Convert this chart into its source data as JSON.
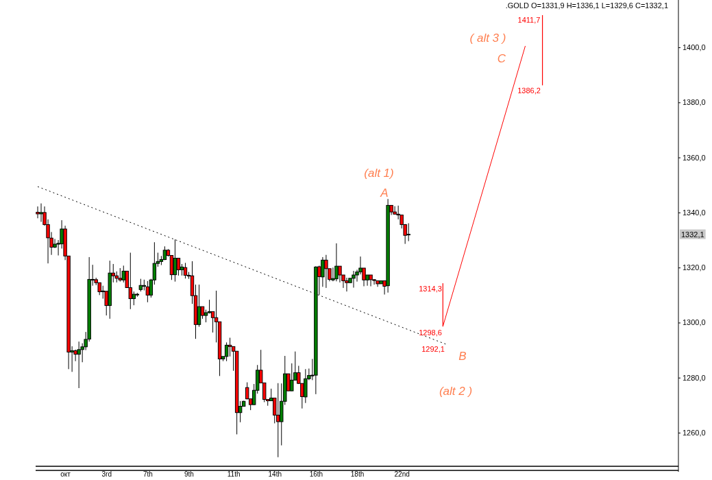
{
  "chart_data": {
    "type": "candlestick",
    "title": ".GOLD O=1331,9 H=1336,1 L=1329,6 C=1332,1",
    "categories": [
      null,
      null,
      null,
      null,
      null,
      null,
      null,
      null,
      "окт",
      null,
      null,
      null,
      null,
      null,
      null,
      null,
      null,
      null,
      null,
      null,
      "3rd",
      null,
      null,
      null,
      null,
      null,
      null,
      null,
      null,
      null,
      null,
      null,
      "7th",
      null,
      null,
      null,
      null,
      null,
      null,
      null,
      null,
      null,
      null,
      null,
      "9th",
      null,
      null,
      null,
      null,
      null,
      null,
      null,
      null,
      null,
      null,
      null,
      null,
      "11th",
      null,
      null,
      null,
      null,
      null,
      null,
      null,
      null,
      null,
      null,
      null,
      "14th",
      null,
      null,
      null,
      null,
      null,
      null,
      null,
      null,
      null,
      null,
      null,
      "16th",
      null,
      null,
      null,
      null,
      null,
      null,
      null,
      null,
      null,
      null,
      null,
      "18th",
      null,
      null,
      null,
      null,
      null,
      null,
      null,
      null,
      null,
      null,
      null,
      null,
      "22nd",
      null,
      null,
      null,
      null,
      null,
      null,
      null,
      null,
      null,
      null,
      null,
      null,
      null,
      null,
      null,
      null,
      null,
      null,
      null,
      null,
      null,
      null,
      null,
      null,
      null,
      null,
      null,
      null,
      null,
      null,
      null,
      null,
      null,
      null,
      null,
      null,
      null,
      null,
      null,
      null,
      null,
      null,
      null,
      null,
      null,
      null,
      null,
      null,
      null,
      null,
      null,
      null,
      null,
      null,
      null,
      null,
      null,
      null,
      null,
      null,
      null,
      null,
      null,
      null,
      null,
      null,
      null,
      null,
      null,
      null,
      null,
      null,
      null,
      null,
      null,
      null,
      null,
      null,
      null,
      null
    ],
    "ohlc": [
      [
        1340.1,
        1342.2,
        1337.9,
        1339.5
      ],
      [
        1339.5,
        1343.3,
        1336.6,
        1340.0
      ],
      [
        1340.0,
        1342.2,
        1335.2,
        1335.6
      ],
      [
        1335.6,
        1337.5,
        1321.5,
        1330.8
      ],
      [
        1330.7,
        1332.9,
        1324.6,
        1327.4
      ],
      [
        1327.4,
        1330.4,
        1327.1,
        1328.5
      ],
      [
        1328.5,
        1330.0,
        1324.4,
        1328.8
      ],
      [
        1328.6,
        1337.2,
        1326.9,
        1334.0
      ],
      [
        1334.0,
        1335.2,
        1322.7,
        1324.2
      ],
      [
        1324.2,
        1324.2,
        1283.1,
        1289.3
      ],
      [
        1289.3,
        1291.4,
        1282.1,
        1289.8
      ],
      [
        1289.8,
        1290.2,
        1286.0,
        1288.5
      ],
      [
        1288.5,
        1293.1,
        1276.2,
        1290.2
      ],
      [
        1290.2,
        1292.5,
        1285.6,
        1291.2
      ],
      [
        1291.2,
        1296.6,
        1290.0,
        1293.9
      ],
      [
        1294.0,
        1323.8,
        1293.1,
        1315.7
      ],
      [
        1315.7,
        1321.0,
        1313.4,
        1315.5
      ],
      [
        1315.6,
        1316.3,
        1313.6,
        1314.5
      ],
      [
        1314.5,
        1314.5,
        1310.0,
        1311.2
      ],
      [
        1311.2,
        1313.4,
        1308.7,
        1311.5
      ],
      [
        1311.4,
        1311.4,
        1302.6,
        1306.2
      ],
      [
        1306.2,
        1322.5,
        1301.4,
        1318.0
      ],
      [
        1318.0,
        1321.3,
        1314.6,
        1317.0
      ],
      [
        1317.0,
        1318.6,
        1314.6,
        1316.1
      ],
      [
        1316.1,
        1319.8,
        1314.9,
        1315.5
      ],
      [
        1315.5,
        1320.7,
        1314.6,
        1318.7
      ],
      [
        1318.7,
        1318.7,
        1312.6,
        1312.7
      ],
      [
        1312.7,
        1325.4,
        1304.9,
        1308.7
      ],
      [
        1308.7,
        1311.3,
        1306.3,
        1310.3
      ],
      [
        1310.3,
        1310.8,
        1309.4,
        1310.2
      ],
      [
        1312.0,
        1315.9,
        1311.3,
        1313.5
      ],
      [
        1313.2,
        1315.6,
        1311.7,
        1313.5
      ],
      [
        1313.0,
        1315.1,
        1307.4,
        1310.0
      ],
      [
        1310.0,
        1315.9,
        1309.1,
        1315.5
      ],
      [
        1315.5,
        1329.2,
        1313.8,
        1321.5
      ],
      [
        1321.5,
        1325.4,
        1320.3,
        1322.2
      ],
      [
        1322.2,
        1324.2,
        1320.9,
        1322.9
      ],
      [
        1322.9,
        1327.7,
        1322.7,
        1326.3
      ],
      [
        1326.3,
        1326.7,
        1324.0,
        1324.4
      ],
      [
        1324.4,
        1324.4,
        1315.5,
        1317.4
      ],
      [
        1317.4,
        1330.2,
        1314.9,
        1323.4
      ],
      [
        1323.4,
        1323.4,
        1317.1,
        1319.2
      ],
      [
        1319.2,
        1321.3,
        1317.1,
        1320.2
      ],
      [
        1320.0,
        1321.7,
        1316.0,
        1317.2
      ],
      [
        1317.2,
        1318.4,
        1315.9,
        1316.9
      ],
      [
        1317.0,
        1322.3,
        1306.8,
        1309.8
      ],
      [
        1309.8,
        1313.8,
        1294.1,
        1299.3
      ],
      [
        1299.3,
        1313.8,
        1298.5,
        1305.8
      ],
      [
        1305.8,
        1305.8,
        1301.4,
        1302.6
      ],
      [
        1302.6,
        1304.7,
        1300.1,
        1303.6
      ],
      [
        1303.6,
        1308.3,
        1303.3,
        1304.0
      ],
      [
        1304.0,
        1304.0,
        1296.4,
        1301.8
      ],
      [
        1301.8,
        1311.6,
        1292.8,
        1300.3
      ],
      [
        1300.3,
        1300.3,
        1280.6,
        1286.8
      ],
      [
        1286.8,
        1287.7,
        1286.0,
        1287.7
      ],
      [
        1287.7,
        1292.8,
        1286.0,
        1291.8
      ],
      [
        1291.8,
        1294.5,
        1287.7,
        1291.3
      ],
      [
        1291.3,
        1291.3,
        1282.5,
        1289.6
      ],
      [
        1289.6,
        1289.6,
        1259.4,
        1267.3
      ],
      [
        1267.3,
        1271.5,
        1263.8,
        1269.6
      ],
      [
        1269.6,
        1271.6,
        1269.6,
        1271.4
      ],
      [
        1276.4,
        1278.3,
        1272.1,
        1272.3
      ],
      [
        1272.3,
        1272.3,
        1268.2,
        1270.2
      ],
      [
        1270.2,
        1277.7,
        1270.0,
        1275.4
      ],
      [
        1275.4,
        1284.6,
        1274.2,
        1282.7
      ],
      [
        1282.7,
        1290.1,
        1278.1,
        1278.1
      ],
      [
        1278.1,
        1278.1,
        1271.1,
        1272.1
      ],
      [
        1272.1,
        1272.1,
        1269.8,
        1271.6
      ],
      [
        1271.6,
        1276.0,
        1271.6,
        1272.6
      ],
      [
        1272.6,
        1272.6,
        1263.4,
        1266.4
      ],
      [
        1266.4,
        1278.0,
        1251.1,
        1264.0
      ],
      [
        1264.0,
        1277.9,
        1255.4,
        1271.4
      ],
      [
        1271.4,
        1287.9,
        1270.1,
        1281.4
      ],
      [
        1281.4,
        1281.4,
        1275.1,
        1275.2
      ],
      [
        1275.2,
        1285.2,
        1275.1,
        1279.1
      ],
      [
        1279.1,
        1289.5,
        1279.1,
        1281.8
      ],
      [
        1281.8,
        1284.3,
        1277.7,
        1277.9
      ],
      [
        1277.9,
        1277.9,
        1268.8,
        1273.1
      ],
      [
        1273.0,
        1283.1,
        1270.8,
        1279.6
      ],
      [
        1279.6,
        1283.3,
        1279.1,
        1280.8
      ],
      [
        1280.8,
        1286.8,
        1279.1,
        1280.9
      ],
      [
        1280.9,
        1320.5,
        1274.0,
        1320.2
      ],
      [
        1320.3,
        1320.7,
        1310.1,
        1316.7
      ],
      [
        1316.6,
        1323.8,
        1313.0,
        1322.7
      ],
      [
        1322.7,
        1324.6,
        1312.6,
        1319.6
      ],
      [
        1319.6,
        1319.6,
        1315.0,
        1315.7
      ],
      [
        1315.5,
        1320.0,
        1315.0,
        1316.0
      ],
      [
        1315.9,
        1328.8,
        1315.0,
        1320.5
      ],
      [
        1320.5,
        1320.5,
        1314.6,
        1317.3
      ],
      [
        1317.3,
        1317.3,
        1312.6,
        1315.2
      ],
      [
        1315.2,
        1316.3,
        1311.3,
        1314.5
      ],
      [
        1314.5,
        1316.1,
        1314.5,
        1316.1
      ],
      [
        1316.1,
        1318.8,
        1312.7,
        1317.3
      ],
      [
        1317.3,
        1319.2,
        1314.9,
        1318.4
      ],
      [
        1318.4,
        1324.0,
        1317.5,
        1319.8
      ],
      [
        1319.8,
        1319.8,
        1313.2,
        1315.5
      ],
      [
        1315.5,
        1317.3,
        1313.4,
        1317.3
      ],
      [
        1317.3,
        1317.3,
        1313.2,
        1315.6
      ],
      [
        1315.6,
        1315.8,
        1313.8,
        1315.3
      ],
      [
        1315.2,
        1315.2,
        1313.0,
        1314.1
      ],
      [
        1314.1,
        1315.2,
        1314.1,
        1315.2
      ],
      [
        1315.2,
        1315.2,
        1310.2,
        1313.2
      ],
      [
        1313.4,
        1344.9,
        1310.9,
        1342.6
      ],
      [
        1342.6,
        1342.6,
        1339.1,
        1340.2
      ],
      [
        1340.2,
        1342.3,
        1339.4,
        1339.4
      ],
      [
        1339.4,
        1342.5,
        1337.5,
        1339.1
      ],
      [
        1339.1,
        1339.1,
        1334.2,
        1335.6
      ],
      [
        1335.6,
        1335.8,
        1328.6,
        1331.7
      ],
      [
        1331.9,
        1336.1,
        1329.6,
        1332.1
      ],
      null,
      null,
      null,
      null,
      null,
      null,
      null,
      null,
      null,
      null,
      null,
      null,
      null,
      null,
      null,
      null,
      null,
      null,
      null,
      null,
      null,
      null,
      null,
      null,
      null,
      null,
      null,
      null,
      null,
      null,
      null,
      null,
      null,
      null,
      null,
      null,
      null,
      null,
      null,
      null,
      null,
      null,
      null,
      null,
      null,
      null,
      null,
      null,
      null,
      null,
      null,
      null,
      null,
      null,
      null,
      null,
      null,
      null,
      null,
      null,
      null,
      null,
      null,
      null,
      null,
      null,
      null,
      null,
      null,
      null,
      null,
      null,
      null,
      null,
      null,
      null,
      null,
      null
    ],
    "series": [
      {
        "type": "line",
        "color": "#000000",
        "line_style": "dotted",
        "values": [
          1349.4,
          null,
          null,
          null,
          null,
          null,
          null,
          null,
          null,
          null,
          null,
          null,
          null,
          null,
          null,
          null,
          null,
          null,
          null,
          null,
          null,
          null,
          null,
          null,
          null,
          null,
          null,
          null,
          null,
          null,
          null,
          null,
          null,
          null,
          null,
          null,
          null,
          null,
          null,
          null,
          null,
          null,
          null,
          null,
          null,
          null,
          null,
          null,
          null,
          null,
          null,
          null,
          null,
          null,
          null,
          null,
          null,
          null,
          null,
          null,
          null,
          null,
          null,
          null,
          null,
          null,
          null,
          null,
          null,
          null,
          null,
          null,
          null,
          null,
          null,
          null,
          null,
          null,
          null,
          null,
          null,
          null,
          null,
          null,
          null,
          null,
          null,
          null,
          null,
          null,
          null,
          null,
          null,
          null,
          null,
          null,
          null,
          null,
          null,
          null,
          null,
          null,
          null,
          null,
          null,
          null,
          null,
          null,
          null,
          null,
          null,
          null,
          null,
          null,
          null,
          null,
          null,
          null,
          null,
          1292.1,
          null,
          null,
          null,
          null,
          null,
          null,
          null,
          null,
          null,
          null,
          null,
          null,
          null,
          null,
          null,
          null,
          null,
          null,
          null,
          null,
          null,
          null,
          null,
          null,
          null,
          null,
          null,
          null,
          null,
          null,
          null,
          null,
          null,
          null,
          null,
          null,
          null,
          null,
          null,
          null,
          null,
          null,
          null,
          null,
          null,
          null,
          null,
          null,
          null,
          null,
          null,
          null,
          null,
          null,
          null,
          null,
          null,
          null,
          null,
          null,
          null,
          null,
          null,
          null,
          null,
          null,
          null
        ]
      },
      {
        "type": "line",
        "color": "#ff0000",
        "line_style": "solid",
        "values": [
          null,
          null,
          null,
          null,
          null,
          null,
          null,
          null,
          null,
          null,
          null,
          null,
          null,
          null,
          null,
          null,
          null,
          null,
          null,
          null,
          null,
          null,
          null,
          null,
          null,
          null,
          null,
          null,
          null,
          null,
          null,
          null,
          null,
          null,
          null,
          null,
          null,
          null,
          null,
          null,
          null,
          null,
          null,
          null,
          null,
          null,
          null,
          null,
          null,
          null,
          null,
          null,
          null,
          null,
          null,
          null,
          null,
          null,
          null,
          null,
          null,
          null,
          null,
          null,
          null,
          null,
          null,
          null,
          null,
          null,
          null,
          null,
          null,
          null,
          null,
          null,
          null,
          null,
          null,
          null,
          null,
          null,
          null,
          null,
          null,
          null,
          null,
          null,
          null,
          null,
          null,
          null,
          null,
          null,
          null,
          null,
          null,
          null,
          null,
          null,
          null,
          null,
          null,
          null,
          null,
          null,
          null,
          null,
          null,
          null,
          null,
          null,
          null,
          null,
          null,
          null,
          null,
          null,
          1298.6,
          null,
          null,
          null,
          null,
          null,
          null,
          null,
          null,
          null,
          null,
          null,
          null,
          null,
          null,
          null,
          null,
          null,
          null,
          null,
          null,
          null,
          null,
          null,
          1400.5,
          null,
          null,
          null,
          null,
          null,
          null,
          null,
          null,
          null,
          null,
          null,
          null,
          null,
          null,
          null,
          null,
          null,
          null,
          null,
          null,
          null,
          null,
          null,
          null,
          null,
          null,
          null,
          null,
          null,
          null,
          null,
          null,
          null,
          null,
          null,
          null,
          null,
          null,
          null,
          null,
          null,
          null,
          null,
          null
        ]
      },
      {
        "type": "bar",
        "color": "#ff0000",
        "values": [
          null,
          null,
          null,
          null,
          null,
          null,
          null,
          null,
          null,
          null,
          null,
          null,
          null,
          null,
          null,
          null,
          null,
          null,
          null,
          null,
          null,
          null,
          null,
          null,
          null,
          null,
          null,
          null,
          null,
          null,
          null,
          null,
          null,
          null,
          null,
          null,
          null,
          null,
          null,
          null,
          null,
          null,
          null,
          null,
          null,
          null,
          null,
          null,
          null,
          null,
          null,
          null,
          null,
          null,
          null,
          null,
          null,
          null,
          null,
          null,
          null,
          null,
          null,
          null,
          null,
          null,
          null,
          null,
          null,
          null,
          null,
          null,
          null,
          null,
          null,
          null,
          null,
          null,
          null,
          null,
          null,
          null,
          null,
          null,
          null,
          null,
          null,
          null,
          null,
          null,
          null,
          null,
          null,
          null,
          null,
          null,
          null,
          null,
          null,
          null,
          null,
          null,
          null,
          null,
          null,
          null,
          null,
          null,
          null,
          null,
          null,
          null,
          null,
          null,
          null,
          null,
          null,
          null,
          15.7,
          null,
          null,
          null,
          null,
          null,
          null,
          null,
          null,
          null,
          null,
          null,
          null,
          null,
          null,
          null,
          null,
          null,
          null,
          null,
          null,
          null,
          null,
          null,
          null,
          null,
          null,
          null,
          null,
          25.5,
          null,
          null,
          null,
          null,
          null,
          null,
          null,
          null,
          null,
          null,
          null,
          null,
          null,
          null,
          null,
          null,
          null,
          null,
          null,
          null,
          null,
          null,
          null,
          null,
          null,
          null,
          null,
          null,
          null,
          null,
          null,
          null,
          null,
          null,
          null,
          null,
          null,
          null,
          null
        ],
        "base": [
          null,
          null,
          null,
          null,
          null,
          null,
          null,
          null,
          null,
          null,
          null,
          null,
          null,
          null,
          null,
          null,
          null,
          null,
          null,
          null,
          null,
          null,
          null,
          null,
          null,
          null,
          null,
          null,
          null,
          null,
          null,
          null,
          null,
          null,
          null,
          null,
          null,
          null,
          null,
          null,
          null,
          null,
          null,
          null,
          null,
          null,
          null,
          null,
          null,
          null,
          null,
          null,
          null,
          null,
          null,
          null,
          null,
          null,
          null,
          null,
          null,
          null,
          null,
          null,
          null,
          null,
          null,
          null,
          null,
          null,
          null,
          null,
          null,
          null,
          null,
          null,
          null,
          null,
          null,
          null,
          null,
          null,
          null,
          null,
          null,
          null,
          null,
          null,
          null,
          null,
          null,
          null,
          null,
          null,
          null,
          null,
          null,
          null,
          null,
          null,
          null,
          null,
          null,
          null,
          null,
          null,
          null,
          null,
          null,
          null,
          null,
          null,
          null,
          null,
          null,
          null,
          null,
          null,
          1298.6,
          null,
          null,
          null,
          null,
          null,
          null,
          null,
          null,
          null,
          null,
          null,
          null,
          null,
          null,
          null,
          null,
          null,
          null,
          null,
          null,
          null,
          null,
          null,
          null,
          null,
          null,
          null,
          null,
          1386.2,
          null,
          null,
          null,
          null,
          null,
          null,
          null,
          null,
          null,
          null,
          null,
          null,
          null,
          null,
          null,
          null,
          null,
          null,
          null,
          null,
          null,
          null,
          null,
          null,
          null,
          null,
          null,
          null,
          null,
          null,
          null,
          null,
          null,
          null,
          null,
          null,
          null,
          null,
          null
        ]
      }
    ],
    "ylim": [
      1247.8,
      1417.2
    ],
    "yticks": [
      {
        "value": 1260,
        "label": "1260,0"
      },
      {
        "value": 1280,
        "label": "1280,0"
      },
      {
        "value": 1300,
        "label": "1300,0"
      },
      {
        "value": 1320,
        "label": "1320,0"
      },
      {
        "value": 1340,
        "label": "1340,0"
      },
      {
        "value": 1360,
        "label": "1360,0"
      },
      {
        "value": 1380,
        "label": "1380,0"
      },
      {
        "value": 1400,
        "label": "1400,0"
      }
    ],
    "grid": false,
    "annotations": [
      "(alt 1)",
      "A",
      "( alt 3 )",
      "C",
      "B",
      "(alt 2 )",
      "1314,3",
      "1298,6",
      "1292,1",
      "1411,7",
      "1386,2",
      {
        "text": "1332,1",
        "y": 1332.1
      }
    ]
  }
}
